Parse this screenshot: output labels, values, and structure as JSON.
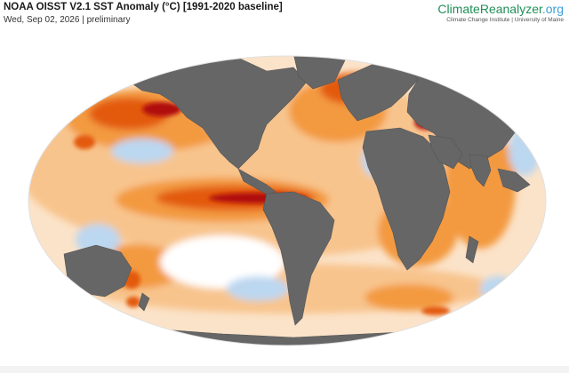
{
  "header": {
    "title": "NOAA OISST V2.1 SST Anomaly (°C) [1991-2020 baseline]",
    "subtitle": "Wed, Sep 02, 2026 | preliminary"
  },
  "brand": {
    "name_part1": "ClimateReanalyzer",
    "name_part2": ".org",
    "affiliation": "Climate Change Institute | University of Maine"
  },
  "map": {
    "projection": "Robinson",
    "land_color": "#666666",
    "ocean_base_color": "#fbe3c9",
    "anomaly_colors": {
      "strong_warm": "#b01010",
      "warm": "#e35a0a",
      "mild_warm": "#f39a3f",
      "slight_warm": "#f8c48d",
      "neutral": "#ffffff",
      "cool": "#bcd7f0",
      "strong_cool": "#7aaee0"
    }
  }
}
